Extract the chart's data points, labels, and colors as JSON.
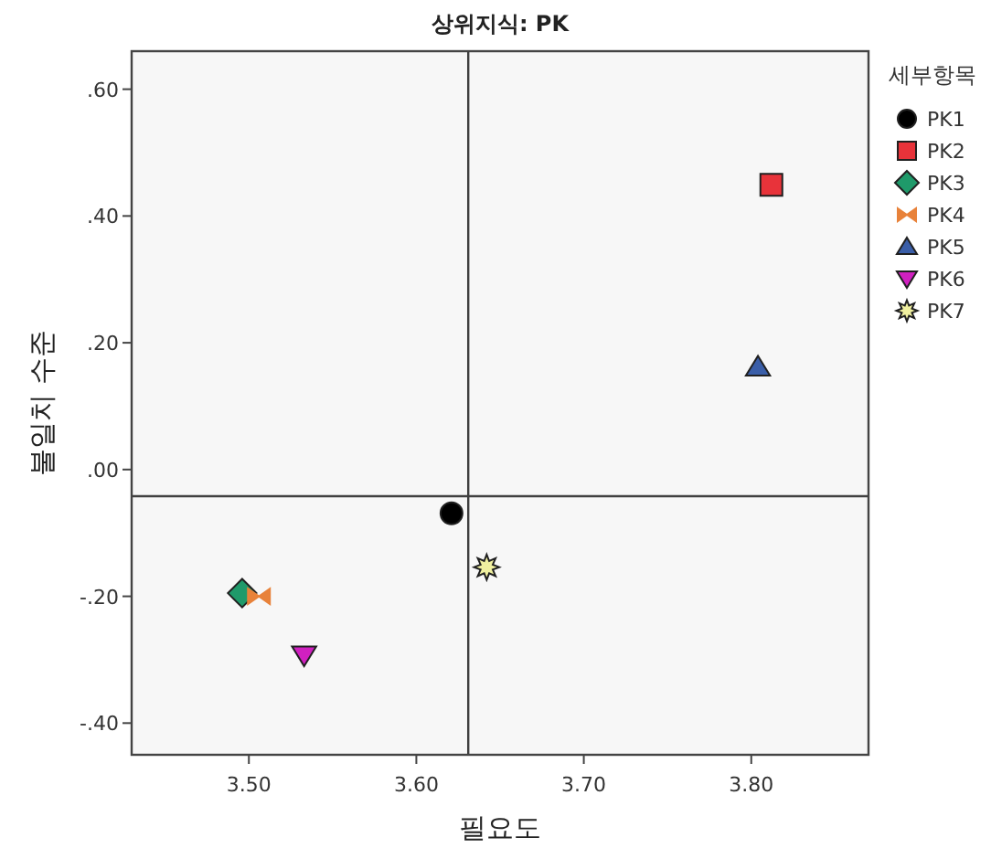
{
  "chart_data": {
    "type": "scatter",
    "title": "상위지식: PK",
    "xlabel": "필요도",
    "ylabel": "불일치 수준",
    "legend_title": "세부항목",
    "legend": "right",
    "grid": false,
    "xlim": [
      3.43,
      3.87
    ],
    "xticks": [
      {
        "value": 3.5,
        "label": "3.50"
      },
      {
        "value": 3.6,
        "label": "3.60"
      },
      {
        "value": 3.7,
        "label": "3.70"
      },
      {
        "value": 3.8,
        "label": "3.80"
      }
    ],
    "ylim": [
      -0.45,
      0.66
    ],
    "yticks": [
      {
        "value": -0.4,
        "label": "-.40"
      },
      {
        "value": -0.2,
        "label": "-.20"
      },
      {
        "value": 0,
        "label": ".00"
      },
      {
        "value": 0.2,
        "label": ".20"
      },
      {
        "value": 0.4,
        "label": ".40"
      },
      {
        "value": 0.6,
        "label": ".60"
      }
    ],
    "ref_lines": [
      {
        "axis": "x",
        "value": 3.631,
        "color": "#404040"
      },
      {
        "axis": "y",
        "value": -0.042,
        "color": "#404040"
      }
    ],
    "series": [
      {
        "name": "PK1",
        "color": "#000000",
        "marker": "circle",
        "x": [
          3.621
        ],
        "values": [
          -0.069
        ]
      },
      {
        "name": "PK2",
        "color": "#e8333a",
        "marker": "square",
        "x": [
          3.812
        ],
        "values": [
          0.449
        ]
      },
      {
        "name": "PK3",
        "color": "#1f9a6a",
        "marker": "diamond",
        "x": [
          3.496
        ],
        "values": [
          -0.195
        ]
      },
      {
        "name": "PK4",
        "color": "#e8823a",
        "x": [
          3.506
        ],
        "values": [
          -0.2
        ]
      },
      {
        "name": "PK5",
        "color": "#3a5ea8",
        "marker": "triangle",
        "x": [
          3.804
        ],
        "values": [
          0.162
        ]
      },
      {
        "name": "PK6",
        "color": "#d020c0",
        "marker": "triangle-down",
        "x": [
          3.533
        ],
        "values": [
          -0.293
        ]
      },
      {
        "name": "PK7",
        "color": "#f0f0a0",
        "marker": "star",
        "x": [
          3.642
        ],
        "values": [
          -0.154
        ]
      }
    ]
  }
}
